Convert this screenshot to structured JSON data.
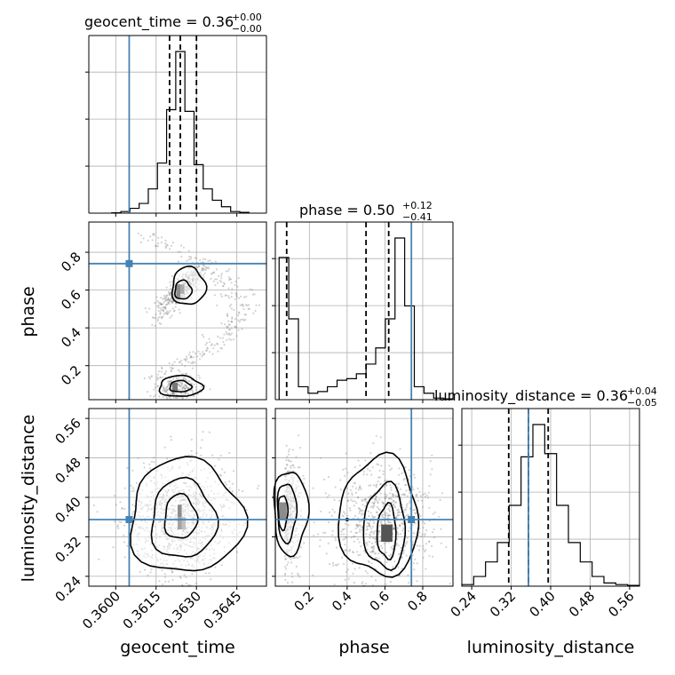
{
  "chart_data": {
    "type": "corner",
    "parameters": [
      "geocent_time",
      "phase",
      "luminosity_distance"
    ],
    "axis_labels": {
      "x": [
        "geocent_time",
        "phase",
        "luminosity_distance"
      ],
      "y": [
        "phase",
        "luminosity_distance"
      ]
    },
    "titles": [
      {
        "param": "geocent_time",
        "text": "geocent_time = 0.36",
        "plus": "+0.00",
        "minus": "−0.00"
      },
      {
        "param": "phase",
        "text": "phase = 0.50",
        "plus": "+0.12",
        "minus": "−0.41"
      },
      {
        "param": "luminosity_distance",
        "text": "luminosity_distance = 0.36",
        "plus": "+0.04",
        "minus": "−0.05"
      }
    ],
    "ranges": {
      "geocent_time": [
        0.359,
        0.3656
      ],
      "phase": [
        0.02,
        0.96
      ],
      "luminosity_distance": [
        0.22,
        0.58
      ]
    },
    "ticks": {
      "geocent_time": {
        "values": [
          0.36,
          0.3615,
          0.363,
          0.3645
        ],
        "labels": [
          "0.3600",
          "0.3615",
          "0.3630",
          "0.3645"
        ]
      },
      "phase": {
        "values": [
          0.2,
          0.4,
          0.6,
          0.8
        ],
        "labels": [
          "0.2",
          "0.4",
          "0.6",
          "0.8"
        ]
      },
      "luminosity_distance": {
        "values": [
          0.24,
          0.32,
          0.4,
          0.48,
          0.56
        ],
        "labels": [
          "0.24",
          "0.32",
          "0.40",
          "0.48",
          "0.56"
        ]
      }
    },
    "truths": {
      "geocent_time": 0.3605,
      "phase": 0.74,
      "luminosity_distance": 0.355
    },
    "quantiles": {
      "geocent_time": [
        0.362,
        0.3624,
        0.363
      ],
      "phase": [
        0.08,
        0.5,
        0.62
      ],
      "luminosity_distance": [
        0.315,
        0.355,
        0.395
      ]
    },
    "histograms": {
      "geocent_time": [
        0.2,
        1,
        3,
        6,
        15,
        31,
        64,
        100,
        63,
        30,
        15,
        8,
        4,
        1,
        0.5
      ],
      "phase": [
        88,
        50,
        8,
        4,
        5,
        8,
        12,
        13,
        16,
        22,
        32,
        50,
        100,
        58,
        8,
        4,
        1,
        0.5
      ],
      "luminosity_distance": [
        1,
        6,
        15,
        27,
        50,
        80,
        100,
        82,
        50,
        27,
        15,
        6,
        2,
        1,
        0.5
      ]
    },
    "colors": {
      "truth": "#4682b4",
      "hist": "#000000",
      "scatter": "#808080"
    },
    "grid": true
  }
}
